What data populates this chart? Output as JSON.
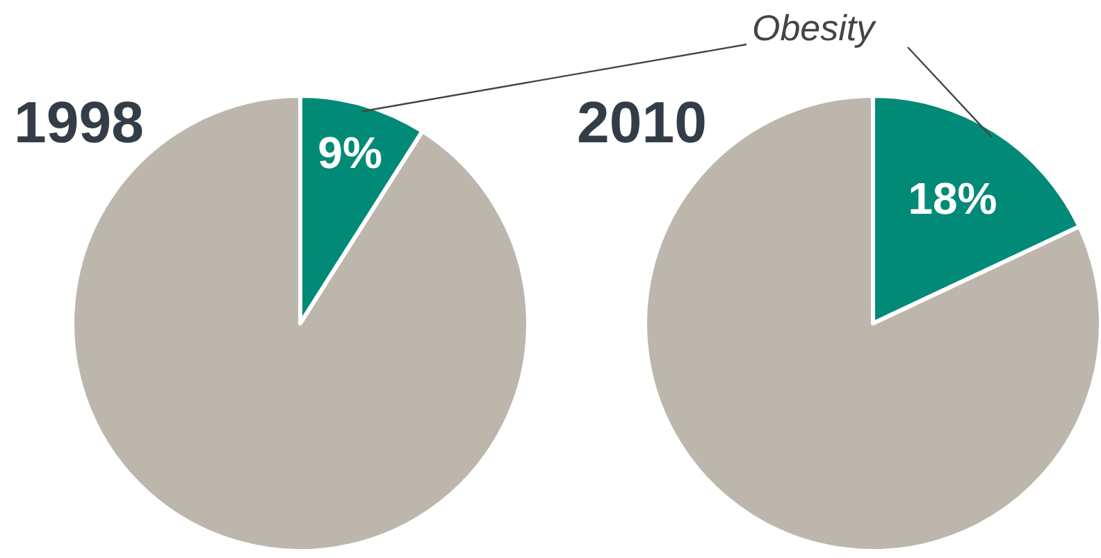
{
  "chart_data": [
    {
      "type": "pie",
      "title": "1998",
      "categories": [
        "Obesity",
        null
      ],
      "values": [
        9,
        91
      ],
      "colors": [
        "#008a77",
        "#bcb6ac"
      ],
      "value_labels": [
        "9%",
        null
      ]
    },
    {
      "type": "pie",
      "title": "2010",
      "categories": [
        null,
        null
      ],
      "values": [
        18,
        82
      ],
      "colors": [
        "#008a77",
        "#bcb6ac"
      ],
      "value_labels": [
        "18%",
        null
      ]
    }
  ]
}
